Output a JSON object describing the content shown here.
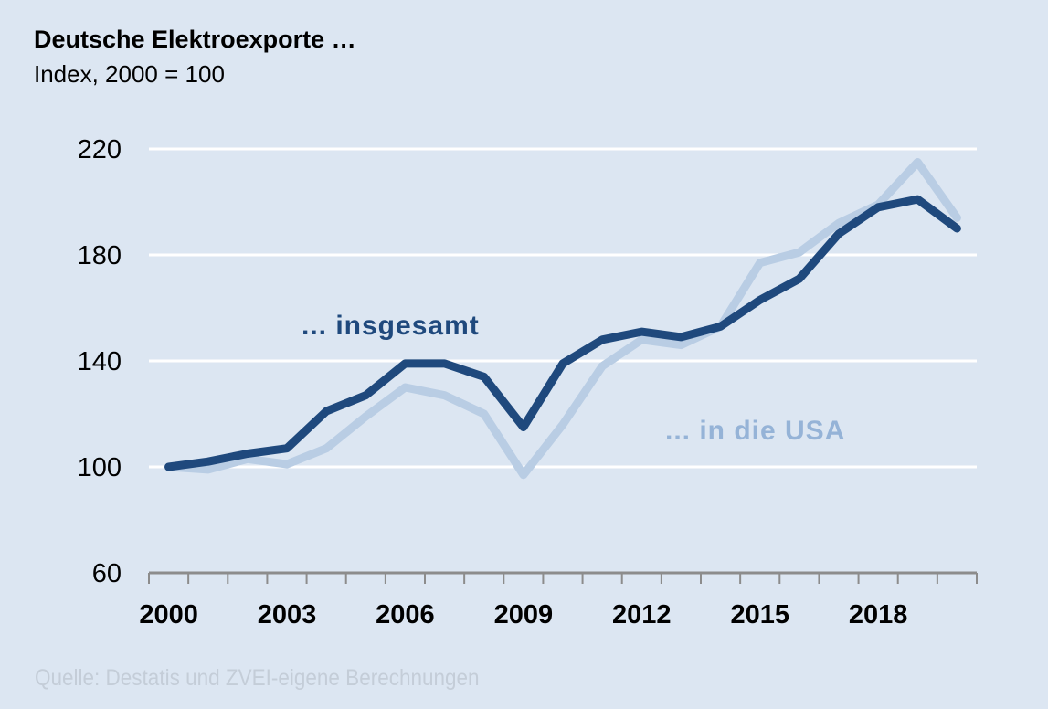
{
  "chart_data": {
    "type": "line",
    "title": "Deutsche Elektroexporte …",
    "subtitle": "Index, 2000 = 100",
    "source": "Quelle: Destatis und ZVEI-eigene Berechnungen",
    "x": [
      2000,
      2001,
      2002,
      2003,
      2004,
      2005,
      2006,
      2007,
      2008,
      2009,
      2010,
      2011,
      2012,
      2013,
      2014,
      2015,
      2016,
      2017,
      2018,
      2019,
      2020
    ],
    "x_tick_labels": [
      "2000",
      "2003",
      "2006",
      "2009",
      "2012",
      "2015",
      "2018"
    ],
    "x_tick_years": [
      2000,
      2003,
      2006,
      2009,
      2012,
      2015,
      2018
    ],
    "y_tick_labels": [
      "60",
      "100",
      "140",
      "180",
      "220"
    ],
    "ylim": [
      60,
      220
    ],
    "grid": "horizontal",
    "series": [
      {
        "name": "... insgesamt",
        "color": "#1f497d",
        "values": [
          100,
          102,
          105,
          107,
          121,
          127,
          139,
          139,
          134,
          115,
          139,
          148,
          151,
          149,
          153,
          163,
          171,
          188,
          198,
          201,
          190
        ]
      },
      {
        "name": "... in die USA",
        "color": "#b9cde4",
        "label_color": "#95b3d7",
        "values": [
          100,
          99,
          103,
          101,
          107,
          119,
          130,
          127,
          120,
          97,
          116,
          138,
          148,
          146,
          153,
          177,
          181,
          192,
          199,
          215,
          194
        ]
      }
    ],
    "background": "#dce6f2"
  }
}
